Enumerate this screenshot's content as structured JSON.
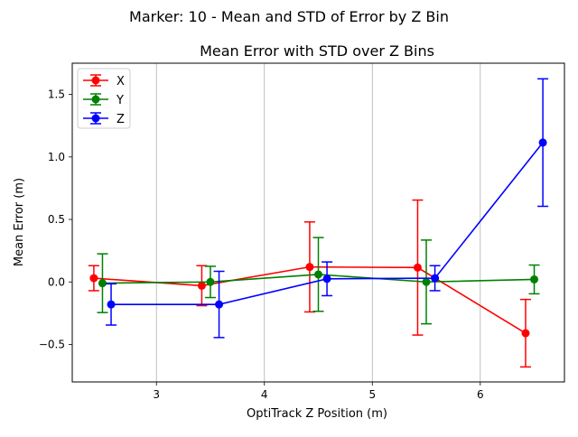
{
  "figure": {
    "suptitle": "Marker: 10 - Mean and STD of Error by Z Bin"
  },
  "chart_data": {
    "type": "line",
    "title": "Mean Error with STD over Z Bins",
    "xlabel": "OptiTrack Z Position (m)",
    "ylabel": "Mean Error (m)",
    "xlim": [
      2.22,
      6.78
    ],
    "ylim": [
      -0.8,
      1.75
    ],
    "xticks": [
      3,
      4,
      5,
      6
    ],
    "yticks": [
      -0.5,
      0.0,
      0.5,
      1.0,
      1.5
    ],
    "xticklabels": [
      "3",
      "4",
      "5",
      "6"
    ],
    "yticklabels": [
      "−0.5",
      "0.0",
      "0.5",
      "1.0",
      "1.5"
    ],
    "grid": "x-axis vertical lines",
    "legend_position": "upper left",
    "series": [
      {
        "name": "X",
        "color": "#ff0000",
        "x": [
          2.42,
          3.42,
          4.42,
          5.42,
          6.42
        ],
        "y": [
          0.03,
          -0.03,
          0.12,
          0.115,
          -0.41
        ],
        "std": [
          0.1,
          0.16,
          0.36,
          0.54,
          0.27
        ]
      },
      {
        "name": "Y",
        "color": "#008000",
        "x": [
          2.5,
          3.5,
          4.5,
          5.5,
          6.5
        ],
        "y": [
          -0.01,
          0.0,
          0.06,
          0.0,
          0.02
        ],
        "std": [
          0.235,
          0.125,
          0.295,
          0.335,
          0.115
        ]
      },
      {
        "name": "Z",
        "color": "#0000ff",
        "x": [
          2.58,
          3.58,
          4.58,
          5.58,
          6.58
        ],
        "y": [
          -0.18,
          -0.18,
          0.025,
          0.03,
          1.115
        ],
        "std": [
          0.165,
          0.265,
          0.135,
          0.1,
          0.51
        ]
      }
    ]
  }
}
